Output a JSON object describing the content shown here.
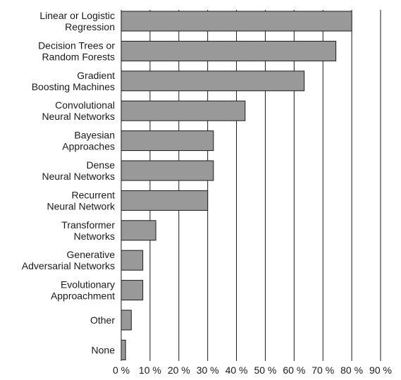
{
  "chart_data": {
    "type": "bar",
    "orientation": "horizontal",
    "categories": [
      [
        "Linear or Logistic",
        "Regression"
      ],
      [
        "Decision Trees or",
        "Random Forests"
      ],
      [
        "Gradient",
        "Boosting Machines"
      ],
      [
        "Convolutional",
        "Neural Networks"
      ],
      [
        "Bayesian",
        "Approaches"
      ],
      [
        "Dense",
        "Neural Networks"
      ],
      [
        "Recurrent",
        "Neural Network"
      ],
      [
        "Transformer",
        "Networks"
      ],
      [
        "Generative",
        "Adversarial Networks"
      ],
      [
        "Evolutionary",
        "Approachment"
      ],
      [
        "Other"
      ],
      [
        "None"
      ]
    ],
    "values": [
      80,
      74.5,
      63.5,
      43,
      32,
      32,
      30,
      12,
      7.5,
      7.5,
      3.5,
      1.5
    ],
    "xlim": [
      0,
      90
    ],
    "xticks": [
      0,
      10,
      20,
      30,
      40,
      50,
      60,
      70,
      80,
      90
    ],
    "tick_labels": [
      "0 %",
      "10 %",
      "20 %",
      "30 %",
      "40 %",
      "50 %",
      "60 %",
      "70 %",
      "80 %",
      "90 %"
    ],
    "grid": "vertical",
    "title": "",
    "xlabel": "",
    "ylabel": "",
    "colors": {
      "bar_fill": "#999999",
      "bar_stroke": "#1a1a1a",
      "grid": "#1a1a1a",
      "text": "#1a1a1a"
    }
  }
}
